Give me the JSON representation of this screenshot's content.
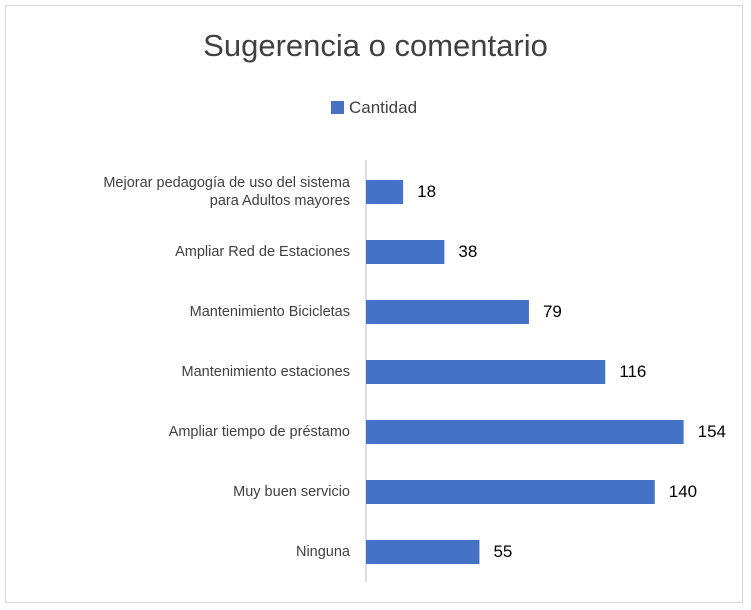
{
  "chart_data": {
    "type": "barh",
    "title": "Sugerencia o comentario",
    "categories": [
      "Mejorar pedagogía de uso del sistema\npara Adultos mayores",
      "Ampliar Red de Estaciones",
      "Mantenimiento Bicicletas",
      "Mantenimiento estaciones",
      "Ampliar tiempo de préstamo",
      "Muy buen servicio",
      "Ninguna"
    ],
    "series": [
      {
        "name": "Cantidad",
        "color": "#4472c4",
        "values": [
          18,
          38,
          79,
          116,
          154,
          140,
          55
        ]
      }
    ],
    "xlim": [
      0,
      160
    ],
    "legend": "top"
  }
}
